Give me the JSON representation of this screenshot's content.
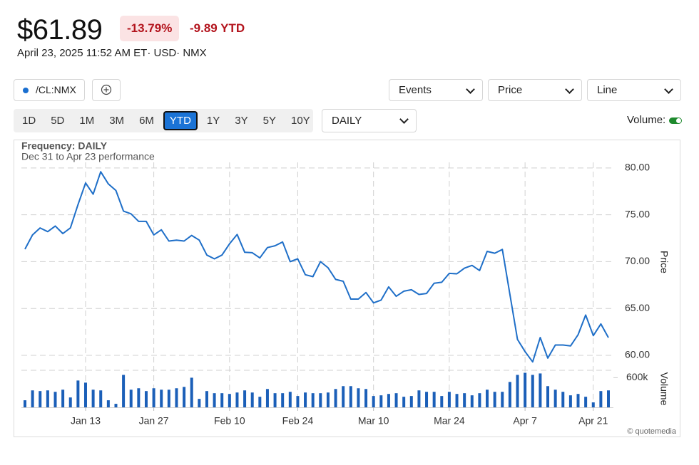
{
  "header": {
    "price": "$61.89",
    "change_pct": "-13.79%",
    "change_ytd": "-9.89 YTD",
    "timestamp": "April 23, 2025 11:52 AM ET· USD· NMX"
  },
  "toolbar": {
    "dropdowns": [
      "Events",
      "Price",
      "Line"
    ],
    "ranges": [
      {
        "label": "1D",
        "active": false
      },
      {
        "label": "5D",
        "active": false
      },
      {
        "label": "1M",
        "active": false
      },
      {
        "label": "3M",
        "active": false
      },
      {
        "label": "6M",
        "active": false
      },
      {
        "label": "YTD",
        "active": true
      },
      {
        "label": "1Y",
        "active": false
      },
      {
        "label": "3Y",
        "active": false
      },
      {
        "label": "5Y",
        "active": false
      },
      {
        "label": "10Y",
        "active": false
      }
    ],
    "frequency": "DAILY",
    "volume_toggle": "Volume:"
  },
  "chart_data": {
    "type": "line",
    "title": "Frequency: DAILY",
    "subtitle": "Dec 31 to Apr 23 performance",
    "ylabel": "Price",
    "credit": "© quotemedia",
    "categories": [
      null,
      null,
      null,
      null,
      null,
      null,
      null,
      null,
      "Jan 13",
      null,
      null,
      null,
      null,
      null,
      null,
      null,
      null,
      "Jan 27",
      null,
      null,
      null,
      null,
      null,
      null,
      null,
      null,
      null,
      "Feb 10",
      null,
      null,
      null,
      null,
      null,
      null,
      null,
      null,
      "Feb 24",
      null,
      null,
      null,
      null,
      null,
      null,
      null,
      null,
      null,
      "Mar 10",
      null,
      null,
      null,
      null,
      null,
      null,
      null,
      null,
      null,
      "Mar 24",
      null,
      null,
      null,
      null,
      null,
      null,
      null,
      null,
      null,
      "Apr 7",
      null,
      null,
      null,
      null,
      null,
      null,
      null,
      null,
      "Apr 21",
      null,
      null
    ],
    "series": [
      {
        "name": "/CL:NMX",
        "color": "#1f6fc8",
        "values": [
          71.33,
          72.85,
          73.6,
          73.2,
          73.8,
          73.0,
          73.6,
          76.1,
          78.4,
          77.2,
          79.6,
          78.3,
          77.6,
          75.4,
          75.1,
          74.3,
          74.3,
          72.85,
          73.4,
          72.2,
          72.3,
          72.2,
          72.8,
          72.3,
          70.7,
          70.3,
          70.7,
          71.9,
          72.9,
          71.0,
          70.95,
          70.4,
          71.5,
          71.7,
          72.1,
          70.0,
          70.3,
          68.6,
          68.4,
          70.0,
          69.35,
          68.1,
          67.9,
          66.0,
          66.0,
          66.7,
          65.6,
          65.9,
          67.3,
          66.3,
          66.85,
          67.0,
          66.5,
          66.6,
          67.7,
          67.8,
          68.75,
          68.7,
          69.3,
          69.6,
          69.05,
          71.1,
          70.9,
          71.3,
          66.5,
          61.7,
          60.4,
          59.3,
          61.9,
          59.7,
          61.1,
          61.1,
          61.0,
          62.2,
          64.3,
          62.1,
          63.35,
          61.89
        ]
      },
      {
        "name": "Volume",
        "color": "#1b5fb8",
        "axis": "y2",
        "values": [
          143000,
          343000,
          329000,
          343000,
          314000,
          357000,
          200000,
          543000,
          500000,
          357000,
          343000,
          143000,
          71000,
          657000,
          357000,
          386000,
          329000,
          386000,
          357000,
          357000,
          386000,
          414000,
          600000,
          171000,
          329000,
          286000,
          286000,
          271000,
          300000,
          343000,
          300000,
          214000,
          371000,
          286000,
          286000,
          314000,
          229000,
          300000,
          286000,
          286000,
          300000,
          371000,
          429000,
          429000,
          386000,
          371000,
          229000,
          243000,
          271000,
          286000,
          214000,
          229000,
          343000,
          314000,
          314000,
          229000,
          314000,
          271000,
          286000,
          243000,
          286000,
          357000,
          314000,
          314000,
          514000,
          657000,
          700000,
          657000,
          686000,
          429000,
          357000,
          314000,
          243000,
          271000,
          214000,
          100000,
          329000,
          343000
        ]
      }
    ],
    "ylim": [
      58.4,
      80.6
    ],
    "yticks": [
      {
        "value": 60,
        "label": "60.00"
      },
      {
        "value": 65,
        "label": "65.00"
      },
      {
        "value": 70,
        "label": "70.00"
      },
      {
        "value": 75,
        "label": "75.00"
      },
      {
        "value": 80,
        "label": "80.00"
      }
    ],
    "y2lim": [
      0,
      750000
    ],
    "y2ticks": [
      {
        "value": 600000,
        "label": "600k"
      }
    ],
    "grid": true
  }
}
